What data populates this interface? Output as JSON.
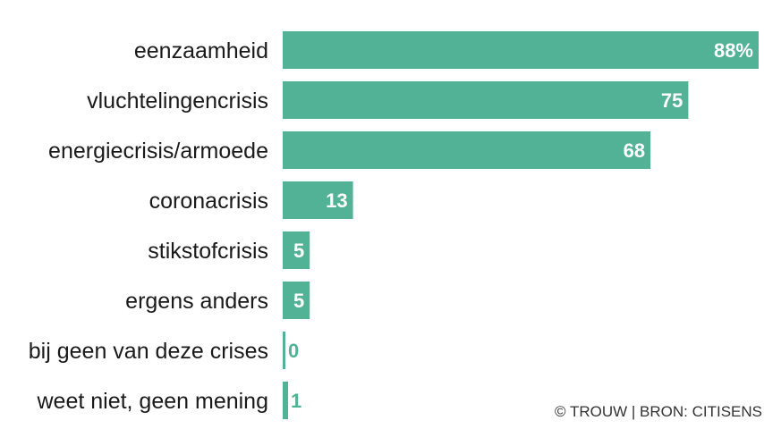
{
  "chart_data": {
    "type": "bar",
    "orientation": "horizontal",
    "categories": [
      "eenzaamheid",
      "vluchtelingencrisis",
      "energiecrisis/armoede",
      "coronacrisis",
      "stikstofcrisis",
      "ergens anders",
      "bij geen van deze crises",
      "weet niet, geen mening"
    ],
    "values": [
      88,
      75,
      68,
      13,
      5,
      5,
      0,
      1
    ],
    "value_labels": [
      "88%",
      "75",
      "68",
      "13",
      "5",
      "5",
      "0",
      "1"
    ],
    "xlim": [
      0,
      88
    ],
    "grid": false,
    "legend": "none"
  },
  "credit": "© TROUW | BRON: CITISENS",
  "colors": {
    "bar": "#52b295",
    "label_inside": "#ffffff",
    "label_outside": "#52b295",
    "text": "#1a1a1a"
  }
}
